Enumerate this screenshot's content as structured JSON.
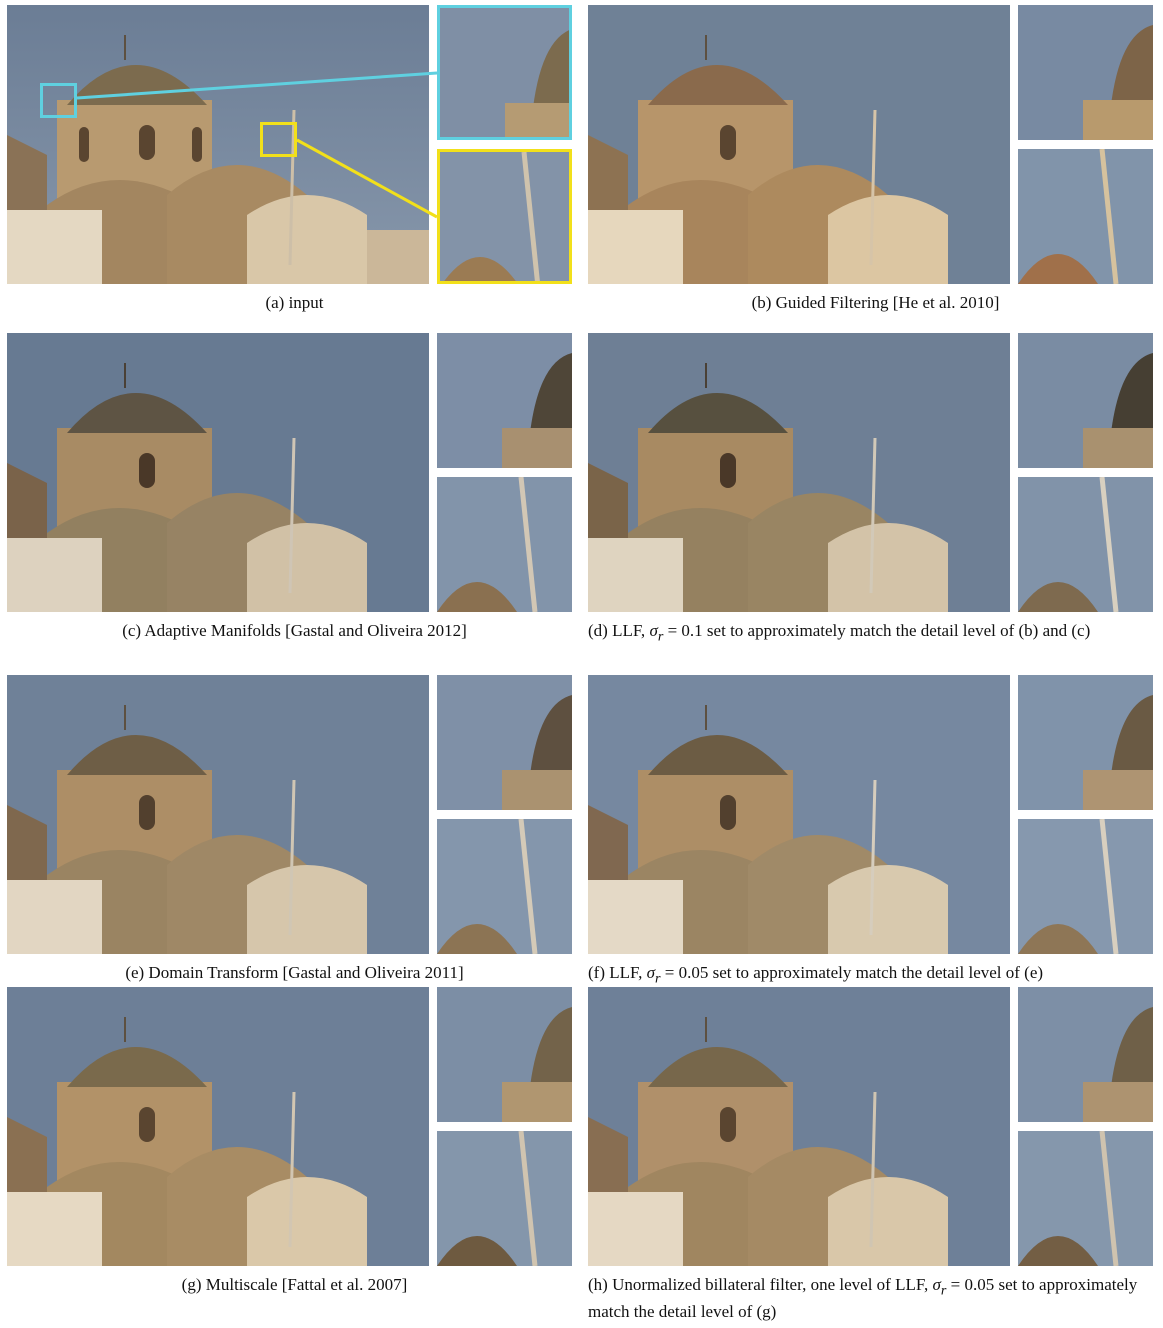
{
  "figure": {
    "panels": [
      {
        "id": "a",
        "caption": "(a)  input",
        "align": "center"
      },
      {
        "id": "b",
        "caption": "(b)  Guided Filtering [He et al. 2010]",
        "align": "center"
      },
      {
        "id": "c",
        "caption": "(c)  Adaptive Manifolds [Gastal and Oliveira 2012]",
        "align": "center"
      },
      {
        "id": "d",
        "caption_pre": "(d)  LLF, ",
        "caption_sigma": "σ",
        "caption_sub": "r",
        "caption_post": " = 0.1 set to approximately match the detail level of (b) and (c)",
        "align": "left"
      },
      {
        "id": "e",
        "caption": "(e)  Domain Transform [Gastal and Oliveira 2011]",
        "align": "center"
      },
      {
        "id": "f",
        "caption_pre": "(f)  LLF, ",
        "caption_sigma": "σ",
        "caption_sub": "r",
        "caption_post": " = 0.05 set to approximately match the detail level of (e)",
        "align": "left"
      },
      {
        "id": "g",
        "caption": "(g)  Multiscale [Fattal et al. 2007]",
        "align": "center"
      },
      {
        "id": "h",
        "caption_pre": "(h)  Unormalized billateral filter, one level of LLF, ",
        "caption_sigma": "σ",
        "caption_sub": "r",
        "caption_post": " = 0.05 set to approximately match the detail level of (g)",
        "align": "left"
      }
    ]
  },
  "colors": {
    "sky_top": "#6d7f96",
    "sky_bottom": "#8a9ab0",
    "dome": "#7a6a4e",
    "stone": "#b08d62",
    "wall_light": "#e8dcc6",
    "highlight_cyan": "#5fd0e0",
    "highlight_yellow": "#f2e01a"
  }
}
